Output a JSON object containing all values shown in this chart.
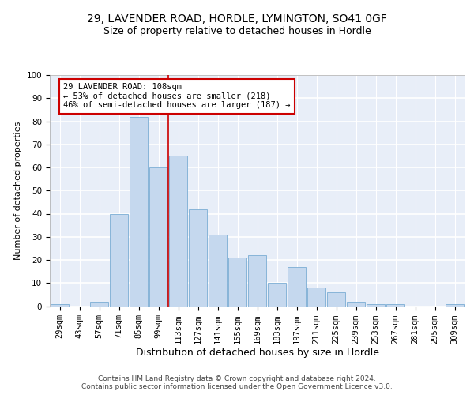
{
  "title1": "29, LAVENDER ROAD, HORDLE, LYMINGTON, SO41 0GF",
  "title2": "Size of property relative to detached houses in Hordle",
  "xlabel": "Distribution of detached houses by size in Hordle",
  "ylabel": "Number of detached properties",
  "categories": [
    "29sqm",
    "43sqm",
    "57sqm",
    "71sqm",
    "85sqm",
    "99sqm",
    "113sqm",
    "127sqm",
    "141sqm",
    "155sqm",
    "169sqm",
    "183sqm",
    "197sqm",
    "211sqm",
    "225sqm",
    "239sqm",
    "253sqm",
    "267sqm",
    "281sqm",
    "295sqm",
    "309sqm"
  ],
  "values": [
    1,
    0,
    2,
    40,
    82,
    60,
    65,
    42,
    31,
    21,
    22,
    10,
    17,
    8,
    6,
    2,
    1,
    1,
    0,
    0,
    1
  ],
  "bar_color": "#c5d8ee",
  "bar_edge_color": "#7aadd4",
  "annotation_title": "29 LAVENDER ROAD: 108sqm",
  "annotation_line2": "← 53% of detached houses are smaller (218)",
  "annotation_line3": "46% of semi-detached houses are larger (187) →",
  "vline_color": "#cc0000",
  "annotation_box_color": "#ffffff",
  "annotation_box_edge": "#cc0000",
  "footer1": "Contains HM Land Registry data © Crown copyright and database right 2024.",
  "footer2": "Contains public sector information licensed under the Open Government Licence v3.0.",
  "yticks": [
    0,
    10,
    20,
    30,
    40,
    50,
    60,
    70,
    80,
    90,
    100
  ],
  "ylim": [
    0,
    100
  ],
  "background_color": "#e8eef8",
  "grid_color": "#ffffff",
  "title1_fontsize": 10,
  "title2_fontsize": 9,
  "xlabel_fontsize": 9,
  "ylabel_fontsize": 8,
  "tick_fontsize": 7.5,
  "annotation_fontsize": 7.5,
  "footer_fontsize": 6.5
}
